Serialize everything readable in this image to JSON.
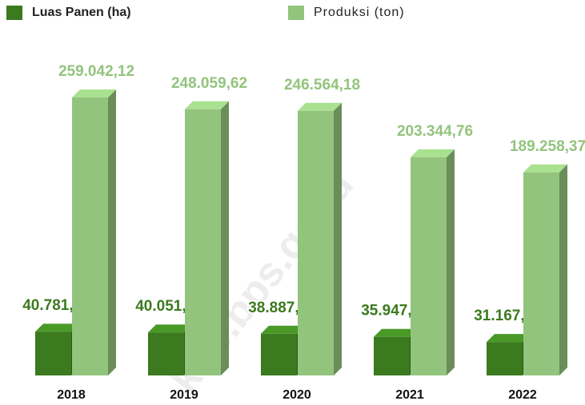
{
  "chart_data": {
    "type": "bar3d",
    "categories": [
      "2018",
      "2019",
      "2020",
      "2021",
      "2022"
    ],
    "series": [
      {
        "name": "Luas Panen (ha)",
        "color": "#3b7a1f",
        "values": [
          40781.14,
          40051.96,
          38887.61,
          35947.06,
          31167.22
        ],
        "value_labels": [
          "40.781,14",
          "40.051,96",
          "38.887,61",
          "35.947,06",
          "31.167,22"
        ]
      },
      {
        "name": "Produksi (ton)",
        "color": "#93c47d",
        "values": [
          259042.12,
          248059.62,
          246564.18,
          203344.76,
          189258.37
        ],
        "value_labels": [
          "259.042,12",
          "248.059,62",
          "246.564,18",
          "203.344,76",
          "189.258,37"
        ]
      }
    ],
    "legend": "top",
    "watermark": "kab.bps.go.id"
  }
}
